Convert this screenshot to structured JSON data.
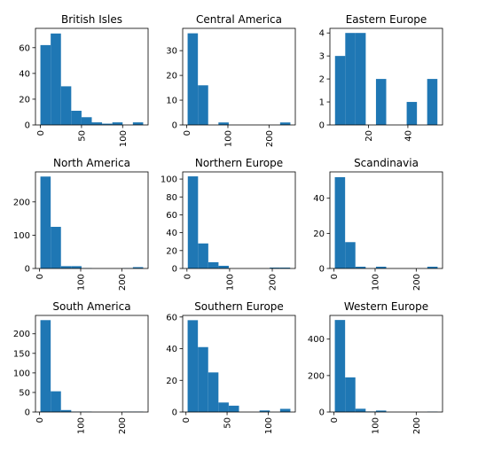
{
  "colors": {
    "bar": "#1f77b4",
    "axis": "#000000",
    "background": "#ffffff"
  },
  "chart_data": [
    {
      "type": "bar",
      "title": "British Isles",
      "bin_edges": [
        0,
        12.5,
        25,
        37.5,
        50,
        62.5,
        75,
        87.5,
        100,
        112.5,
        125
      ],
      "values": [
        62,
        71,
        30,
        11,
        6,
        2,
        1,
        2,
        0,
        2
      ],
      "xlim": [
        -6,
        131
      ],
      "ylim": [
        0,
        75
      ],
      "xticks": [
        0,
        50,
        100
      ],
      "yticks": [
        0,
        20,
        40,
        60
      ]
    },
    {
      "type": "bar",
      "title": "Central America",
      "bin_edges": [
        2,
        27,
        52,
        77,
        102,
        127,
        152,
        177,
        202,
        227,
        252
      ],
      "values": [
        37,
        16,
        0,
        1,
        0,
        0,
        0,
        0,
        0,
        1
      ],
      "xlim": [
        -10,
        264
      ],
      "ylim": [
        0,
        39
      ],
      "xticks": [
        0,
        100,
        200
      ],
      "yticks": [
        0,
        10,
        20,
        30
      ]
    },
    {
      "type": "bar",
      "title": "Eastern Europe",
      "bin_edges": [
        3,
        8.2,
        13.4,
        18.6,
        23.8,
        29,
        34.2,
        39.4,
        44.6,
        49.8,
        55
      ],
      "values": [
        3,
        4,
        4,
        0,
        2,
        0,
        0,
        1,
        0,
        2
      ],
      "xlim": [
        0.4,
        57.6
      ],
      "ylim": [
        0,
        4.2
      ],
      "xticks": [
        20,
        40
      ],
      "yticks": [
        0,
        1,
        2,
        3,
        4
      ]
    },
    {
      "type": "bar",
      "title": "North America",
      "bin_edges": [
        2,
        27,
        52,
        77,
        102,
        127,
        152,
        177,
        202,
        227,
        252
      ],
      "values": [
        276,
        125,
        7,
        7,
        1,
        0,
        0,
        0,
        1,
        4
      ],
      "xlim": [
        -10,
        264
      ],
      "ylim": [
        0,
        290
      ],
      "xticks": [
        0,
        100,
        200
      ],
      "yticks": [
        0,
        100,
        200
      ]
    },
    {
      "type": "bar",
      "title": "Northern Europe",
      "bin_edges": [
        2,
        26,
        50,
        74,
        98,
        122,
        146,
        170,
        194,
        218,
        242
      ],
      "values": [
        103,
        28,
        7,
        3,
        0,
        0,
        0,
        0,
        1,
        1
      ],
      "xlim": [
        -10,
        254
      ],
      "ylim": [
        0,
        108
      ],
      "xticks": [
        0,
        100,
        200
      ],
      "yticks": [
        0,
        20,
        40,
        60,
        80,
        100
      ]
    },
    {
      "type": "bar",
      "title": "Scandinavia",
      "bin_edges": [
        2,
        27,
        52,
        77,
        102,
        127,
        152,
        177,
        202,
        227,
        252
      ],
      "values": [
        52,
        15,
        1,
        0,
        1,
        0,
        0,
        0,
        0,
        1
      ],
      "xlim": [
        -10,
        264
      ],
      "ylim": [
        0,
        55
      ],
      "xticks": [
        0,
        100,
        200
      ],
      "yticks": [
        0,
        20,
        40
      ]
    },
    {
      "type": "bar",
      "title": "South America",
      "bin_edges": [
        2,
        27,
        52,
        77,
        102,
        127,
        152,
        177,
        202,
        227,
        252
      ],
      "values": [
        235,
        53,
        5,
        1,
        1,
        0,
        0,
        0,
        1,
        1
      ],
      "xlim": [
        -10,
        264
      ],
      "ylim": [
        0,
        247
      ],
      "xticks": [
        0,
        100,
        200
      ],
      "yticks": [
        0,
        50,
        100,
        150,
        200
      ]
    },
    {
      "type": "bar",
      "title": "Southern Europe",
      "bin_edges": [
        2,
        14.5,
        27,
        39.5,
        52,
        64.5,
        77,
        89.5,
        102,
        114.5,
        127
      ],
      "values": [
        58,
        41,
        25,
        6,
        4,
        0,
        0,
        1,
        0,
        2
      ],
      "xlim": [
        -4,
        133
      ],
      "ylim": [
        0,
        61
      ],
      "xticks": [
        0,
        50,
        100
      ],
      "yticks": [
        0,
        20,
        40,
        60
      ]
    },
    {
      "type": "bar",
      "title": "Western Europe",
      "bin_edges": [
        2,
        27,
        52,
        77,
        102,
        127,
        152,
        177,
        202,
        227,
        252
      ],
      "values": [
        505,
        190,
        18,
        3,
        8,
        0,
        0,
        0,
        0,
        2
      ],
      "xlim": [
        -10,
        264
      ],
      "ylim": [
        0,
        530
      ],
      "xticks": [
        0,
        100,
        200
      ],
      "yticks": [
        0,
        200,
        400
      ]
    }
  ]
}
